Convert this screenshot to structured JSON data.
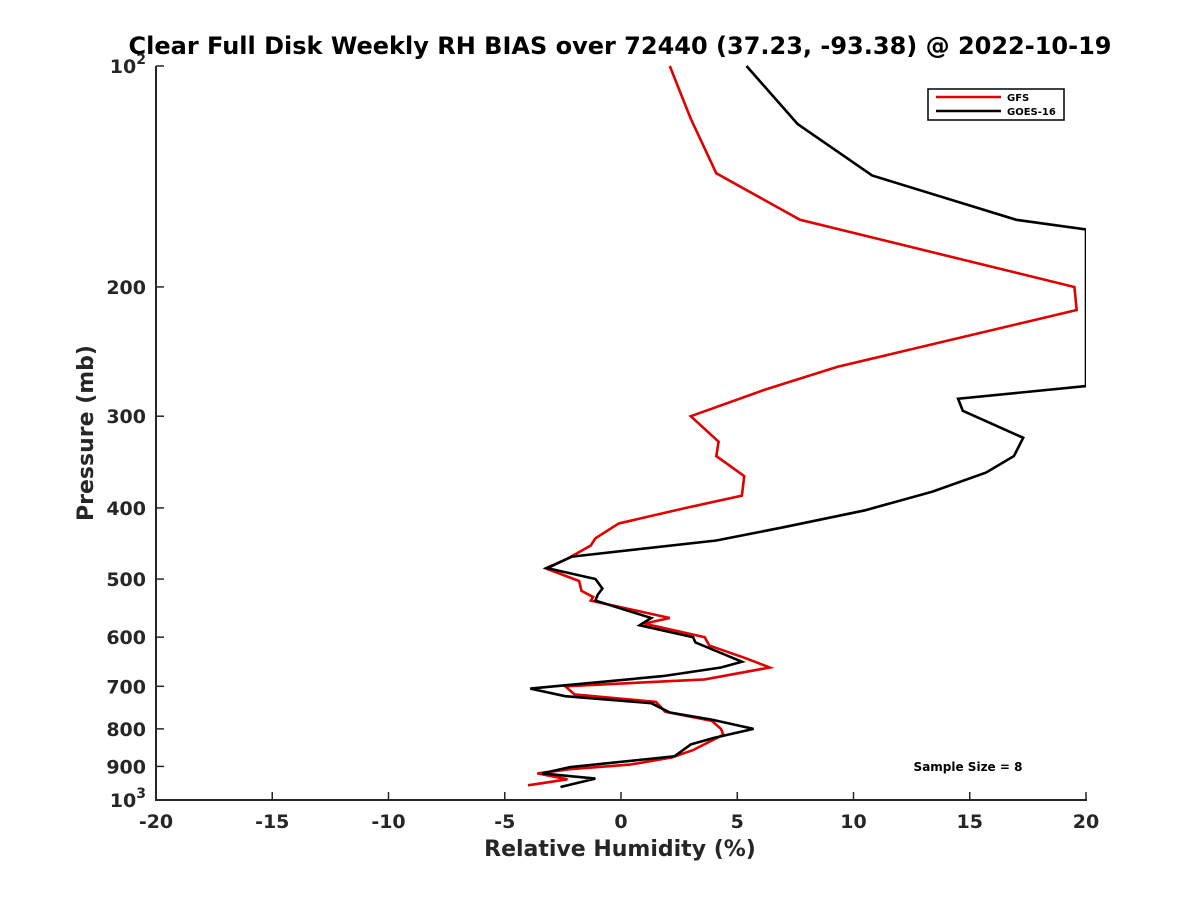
{
  "chart_data": {
    "type": "line",
    "title": "Clear Full Disk Weekly RH BIAS over 72440 (37.23, -93.38) @ 2022-10-19",
    "xlabel": "Relative Humidity (%)",
    "ylabel": "Pressure (mb)",
    "xlim": [
      -20,
      20
    ],
    "ylim": [
      100,
      1000
    ],
    "y_scale": "log",
    "y_reversed": true,
    "grid": false,
    "legend_position": "top-right",
    "x_ticks": [
      -20,
      -15,
      -10,
      -5,
      0,
      5,
      10,
      15,
      20
    ],
    "x_tick_labels": [
      "-20",
      "-15",
      "-10",
      "-5",
      "0",
      "5",
      "10",
      "15",
      "20"
    ],
    "y_ticks": [
      {
        "value": 100,
        "base": "10",
        "exp": "2"
      },
      {
        "value": 200,
        "base": "200",
        "exp": ""
      },
      {
        "value": 300,
        "base": "300",
        "exp": ""
      },
      {
        "value": 400,
        "base": "400",
        "exp": ""
      },
      {
        "value": 500,
        "base": "500",
        "exp": ""
      },
      {
        "value": 600,
        "base": "600",
        "exp": ""
      },
      {
        "value": 700,
        "base": "700",
        "exp": ""
      },
      {
        "value": 800,
        "base": "800",
        "exp": ""
      },
      {
        "value": 900,
        "base": "900",
        "exp": ""
      },
      {
        "value": 1000,
        "base": "10",
        "exp": "3"
      }
    ],
    "annotation": "Sample Size = 8",
    "series": [
      {
        "name": "GFS",
        "color": "#e00000",
        "points": [
          [
            2.1,
            100
          ],
          [
            3.0,
            118
          ],
          [
            4.1,
            140
          ],
          [
            7.7,
            162
          ],
          [
            19.5,
            200
          ],
          [
            19.6,
            215
          ],
          [
            9.3,
            257
          ],
          [
            6.2,
            276
          ],
          [
            3.0,
            300
          ],
          [
            4.2,
            325
          ],
          [
            4.1,
            340
          ],
          [
            5.3,
            362
          ],
          [
            5.2,
            385
          ],
          [
            2.8,
            400
          ],
          [
            -0.1,
            420
          ],
          [
            -1.1,
            440
          ],
          [
            -1.3,
            450
          ],
          [
            -2.2,
            467
          ],
          [
            -3.2,
            484
          ],
          [
            -1.8,
            503
          ],
          [
            -1.7,
            519
          ],
          [
            -1.2,
            529
          ],
          [
            -1.3,
            535
          ],
          [
            2.1,
            565
          ],
          [
            1.0,
            575
          ],
          [
            3.6,
            600
          ],
          [
            3.8,
            616
          ],
          [
            5.3,
            640
          ],
          [
            6.4,
            660
          ],
          [
            3.6,
            685
          ],
          [
            -2.4,
            700
          ],
          [
            -2.0,
            718
          ],
          [
            1.5,
            735
          ],
          [
            1.9,
            758
          ],
          [
            3.9,
            780
          ],
          [
            4.3,
            800
          ],
          [
            4.4,
            815
          ],
          [
            3.9,
            830
          ],
          [
            3.1,
            855
          ],
          [
            2.2,
            875
          ],
          [
            0.4,
            895
          ],
          [
            -2.2,
            908
          ],
          [
            -3.6,
            920
          ],
          [
            -2.3,
            937
          ],
          [
            -4.0,
            955
          ]
        ]
      },
      {
        "name": "GOES-16",
        "color": "#000000",
        "points": [
          [
            5.4,
            100
          ],
          [
            7.6,
            120
          ],
          [
            10.8,
            141
          ],
          [
            17.0,
            162
          ],
          [
            20.0,
            167
          ],
          [
            20.0,
            273
          ],
          [
            14.5,
            284
          ],
          [
            14.7,
            295
          ],
          [
            17.3,
            321
          ],
          [
            16.9,
            340
          ],
          [
            15.7,
            358
          ],
          [
            13.4,
            380
          ],
          [
            10.5,
            403
          ],
          [
            7.0,
            425
          ],
          [
            4.1,
            443
          ],
          [
            -2.1,
            466
          ],
          [
            -3.2,
            483
          ],
          [
            -1.1,
            500
          ],
          [
            -0.8,
            515
          ],
          [
            -1.0,
            525
          ],
          [
            -1.1,
            535
          ],
          [
            1.3,
            565
          ],
          [
            0.8,
            578
          ],
          [
            3.1,
            600
          ],
          [
            3.2,
            610
          ],
          [
            5.2,
            648
          ],
          [
            4.3,
            660
          ],
          [
            1.8,
            678
          ],
          [
            -3.9,
            705
          ],
          [
            -2.4,
            722
          ],
          [
            1.3,
            738
          ],
          [
            2.1,
            760
          ],
          [
            3.9,
            777
          ],
          [
            5.7,
            800
          ],
          [
            4.0,
            823
          ],
          [
            3.0,
            840
          ],
          [
            2.3,
            872
          ],
          [
            -2.2,
            902
          ],
          [
            -3.4,
            920
          ],
          [
            -1.1,
            935
          ],
          [
            -2.6,
            960
          ]
        ]
      }
    ]
  }
}
